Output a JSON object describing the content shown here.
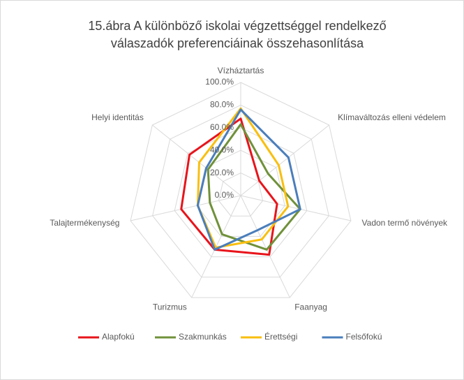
{
  "chart_data": {
    "type": "radar",
    "title": [
      "15.ábra A különböző iskolai végzettséggel rendelkező",
      "válaszadók preferenciáinak összehasonlítása"
    ],
    "categories": [
      "Vízháztartás",
      "Klímaváltozás elleni védelem",
      "Vadon termő növények",
      "Faanyag",
      "Turizmus",
      "Talajtermékenység",
      "Helyi identitás"
    ],
    "series": [
      {
        "name": "Alapfokú",
        "color": "#e8141b",
        "values": [
          68,
          21,
          33,
          58,
          53,
          54,
          58
        ]
      },
      {
        "name": "Szakmunkás",
        "color": "#70913a",
        "values": [
          63,
          31,
          54,
          53,
          38,
          28,
          37
        ]
      },
      {
        "name": "Érettségi",
        "color": "#f9bf0f",
        "values": [
          77,
          43,
          43,
          43,
          51,
          39,
          47
        ]
      },
      {
        "name": "Felsőfokú",
        "color": "#4a7ebb",
        "values": [
          76,
          54,
          54,
          34,
          53,
          39,
          39
        ]
      }
    ],
    "rlim": [
      0,
      100
    ],
    "rticks": [
      {
        "value": 0,
        "label": "0.0%"
      },
      {
        "value": 20,
        "label": "20.0%"
      },
      {
        "value": 40,
        "label": "40.0%"
      },
      {
        "value": 60,
        "label": "60.0%"
      },
      {
        "value": 80,
        "label": "80.0%"
      },
      {
        "value": 100,
        "label": "100.0%"
      }
    ],
    "grid": true,
    "legend": "bottom"
  }
}
